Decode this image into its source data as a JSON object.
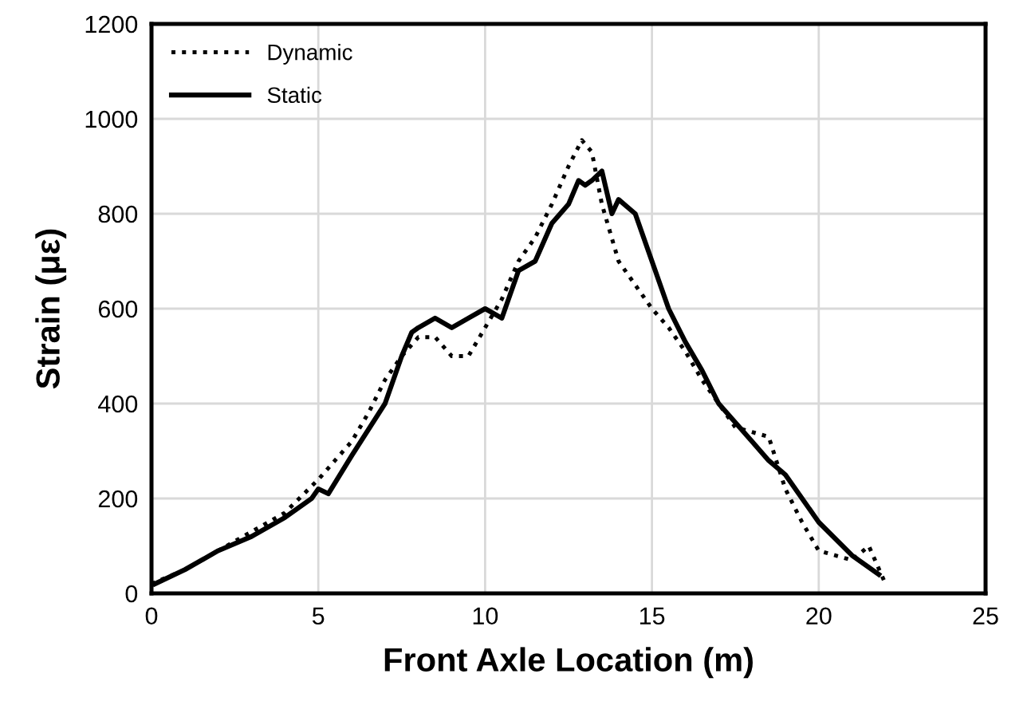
{
  "chart_data": {
    "type": "line",
    "xlabel": "Front Axle Location (m)",
    "ylabel": "Strain (με)",
    "xlim": [
      0,
      25
    ],
    "xticks": [
      0,
      5,
      10,
      15,
      20,
      25
    ],
    "ylim": [
      0,
      1200
    ],
    "yticks": [
      0,
      200,
      400,
      600,
      800,
      1000,
      1200
    ],
    "grid": true,
    "legend": "top left",
    "marker": "none",
    "series": [
      {
        "name": "Dynamic",
        "color": "#000000",
        "line_style": "dotted",
        "x": [
          0,
          1,
          2,
          3,
          4,
          5,
          6,
          6.5,
          7,
          7.5,
          8,
          8.5,
          9,
          9.5,
          10,
          10.5,
          11,
          11.5,
          12,
          12.5,
          12.9,
          13.2,
          13.5,
          14,
          14.5,
          15,
          15.5,
          16,
          16.5,
          17,
          17.5,
          18,
          18.5,
          19,
          19.5,
          20,
          21,
          21.5,
          22
        ],
        "values": [
          20,
          50,
          90,
          130,
          170,
          240,
          320,
          380,
          450,
          500,
          540,
          540,
          500,
          500,
          560,
          620,
          700,
          750,
          820,
          900,
          955,
          930,
          820,
          700,
          650,
          600,
          560,
          510,
          450,
          400,
          350,
          340,
          330,
          220,
          150,
          90,
          70,
          100,
          20
        ]
      },
      {
        "name": "Static",
        "color": "#000000",
        "line_style": "solid",
        "x": [
          0.1,
          1,
          2,
          3,
          4,
          4.8,
          5,
          5.3,
          6,
          7,
          7.5,
          7.8,
          8,
          8.5,
          9,
          9.5,
          10,
          10.5,
          11,
          11.5,
          12,
          12.5,
          12.8,
          13,
          13.2,
          13.5,
          13.8,
          14,
          14.5,
          15,
          15.5,
          16,
          16.5,
          17,
          17.5,
          18,
          18.5,
          19,
          19.5,
          20,
          21,
          21.8
        ],
        "values": [
          20,
          50,
          90,
          120,
          160,
          200,
          220,
          210,
          290,
          400,
          500,
          550,
          560,
          580,
          560,
          580,
          600,
          580,
          680,
          700,
          780,
          820,
          870,
          860,
          870,
          890,
          800,
          830,
          800,
          700,
          600,
          530,
          470,
          400,
          360,
          320,
          280,
          250,
          200,
          150,
          80,
          40
        ]
      }
    ]
  }
}
